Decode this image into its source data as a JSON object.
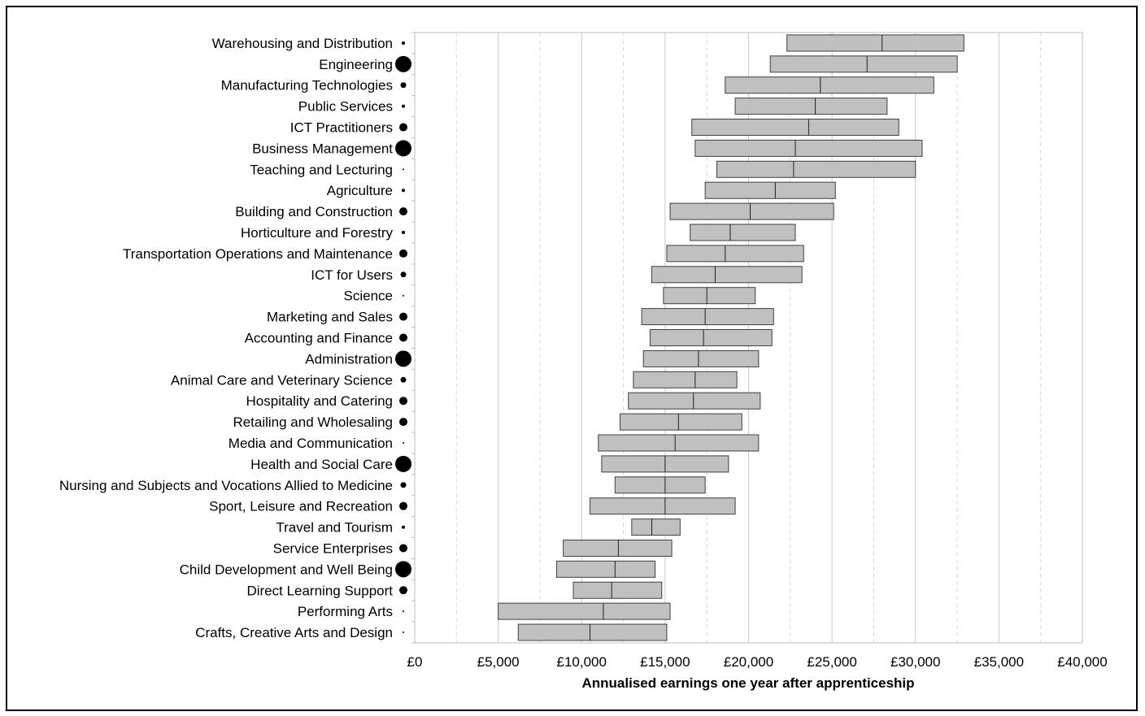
{
  "chart_data": {
    "type": "bar",
    "subtype": "floating-range-with-median",
    "xlabel": "Annualised earnings one year after apprenticeship",
    "ylabel": "",
    "title": "",
    "xlim": [
      0,
      40000
    ],
    "x_ticks": [
      0,
      5000,
      10000,
      15000,
      20000,
      25000,
      30000,
      35000,
      40000
    ],
    "x_tick_labels": [
      "£0",
      "£5,000",
      "£10,000",
      "£15,000",
      "£20,000",
      "£25,000",
      "£30,000",
      "£35,000",
      "£40,000"
    ],
    "grid": "vertical dashed at minor, solid at major",
    "bar_color": "#c0c0c0",
    "marker_color": "#000000",
    "categories": [
      {
        "name": "Warehousing and Distribution",
        "low": 22300,
        "median": 28000,
        "high": 32900,
        "size": "tiny"
      },
      {
        "name": "Engineering",
        "low": 21300,
        "median": 27100,
        "high": 32500,
        "size": "large"
      },
      {
        "name": "Manufacturing Technologies",
        "low": 18600,
        "median": 24300,
        "high": 31100,
        "size": "small"
      },
      {
        "name": "Public Services",
        "low": 19200,
        "median": 24000,
        "high": 28300,
        "size": "tiny"
      },
      {
        "name": "ICT Practitioners",
        "low": 16600,
        "median": 23600,
        "high": 29000,
        "size": "medium"
      },
      {
        "name": "Business Management",
        "low": 16800,
        "median": 22800,
        "high": 30400,
        "size": "large"
      },
      {
        "name": "Teaching and Lecturing",
        "low": 18100,
        "median": 22700,
        "high": 30000,
        "size": "dot"
      },
      {
        "name": "Agriculture",
        "low": 17400,
        "median": 21600,
        "high": 25200,
        "size": "tiny"
      },
      {
        "name": "Building and Construction",
        "low": 15300,
        "median": 20100,
        "high": 25100,
        "size": "medium"
      },
      {
        "name": "Horticulture and Forestry",
        "low": 16500,
        "median": 18900,
        "high": 22800,
        "size": "tiny"
      },
      {
        "name": "Transportation Operations and Maintenance",
        "low": 15100,
        "median": 18600,
        "high": 23300,
        "size": "medium"
      },
      {
        "name": "ICT for Users",
        "low": 14200,
        "median": 18000,
        "high": 23200,
        "size": "small"
      },
      {
        "name": "Science",
        "low": 14900,
        "median": 17500,
        "high": 20400,
        "size": "dot"
      },
      {
        "name": "Marketing and Sales",
        "low": 13600,
        "median": 17400,
        "high": 21500,
        "size": "medium"
      },
      {
        "name": "Accounting and Finance",
        "low": 14100,
        "median": 17300,
        "high": 21400,
        "size": "medium"
      },
      {
        "name": "Administration",
        "low": 13700,
        "median": 17000,
        "high": 20600,
        "size": "large"
      },
      {
        "name": "Animal Care and Veterinary Science",
        "low": 13100,
        "median": 16800,
        "high": 19300,
        "size": "small"
      },
      {
        "name": "Hospitality and Catering",
        "low": 12800,
        "median": 16700,
        "high": 20700,
        "size": "medium"
      },
      {
        "name": "Retailing and Wholesaling",
        "low": 12300,
        "median": 15800,
        "high": 19600,
        "size": "medium"
      },
      {
        "name": "Media and Communication",
        "low": 11000,
        "median": 15600,
        "high": 20600,
        "size": "dot"
      },
      {
        "name": "Health and Social Care",
        "low": 11200,
        "median": 15000,
        "high": 18800,
        "size": "large"
      },
      {
        "name": "Nursing and Subjects and Vocations Allied to Medicine",
        "low": 12000,
        "median": 15000,
        "high": 17400,
        "size": "small"
      },
      {
        "name": "Sport, Leisure and Recreation",
        "low": 10500,
        "median": 15000,
        "high": 19200,
        "size": "medium"
      },
      {
        "name": "Travel and Tourism",
        "low": 13000,
        "median": 14200,
        "high": 15900,
        "size": "tiny"
      },
      {
        "name": "Service Enterprises",
        "low": 8900,
        "median": 12200,
        "high": 15400,
        "size": "medium"
      },
      {
        "name": "Child Development and Well Being",
        "low": 8500,
        "median": 12000,
        "high": 14400,
        "size": "large"
      },
      {
        "name": "Direct Learning Support",
        "low": 9500,
        "median": 11800,
        "high": 14800,
        "size": "medium"
      },
      {
        "name": "Performing Arts",
        "low": 5000,
        "median": 11300,
        "high": 15300,
        "size": "dot"
      },
      {
        "name": "Crafts, Creative Arts and Design",
        "low": 6200,
        "median": 10500,
        "high": 15100,
        "size": "dot"
      }
    ]
  }
}
